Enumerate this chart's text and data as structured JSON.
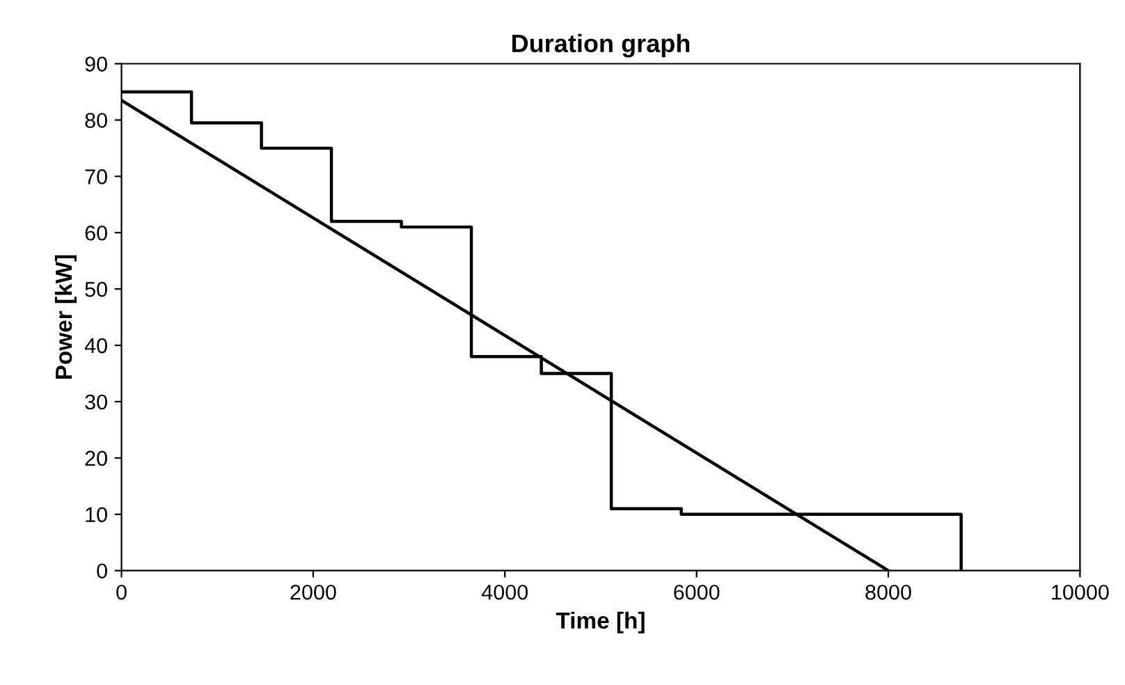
{
  "chart_data": {
    "type": "line",
    "title": "Duration graph",
    "xlabel": "Time [h]",
    "ylabel": "Power [kW]",
    "series": [
      {
        "type": "step",
        "color": "#000000",
        "x": [
          0,
          730,
          1460,
          2190,
          2920,
          3650,
          4380,
          5110,
          5840,
          8760
        ],
        "values": [
          85,
          79.5,
          75,
          62,
          61,
          38,
          35,
          11,
          10,
          0
        ]
      },
      {
        "color": "#000000",
        "x": [
          0,
          8000
        ],
        "values": [
          83.5,
          0
        ]
      }
    ],
    "xlim": [
      0,
      10000
    ],
    "xticks": [
      0,
      2000,
      4000,
      6000,
      8000,
      10000
    ],
    "ylim": [
      0,
      90
    ],
    "yticks": [
      0,
      10,
      20,
      30,
      40,
      50,
      60,
      70,
      80,
      90
    ],
    "grid": false,
    "legend": false,
    "marker": "none",
    "line_style": "solid"
  }
}
